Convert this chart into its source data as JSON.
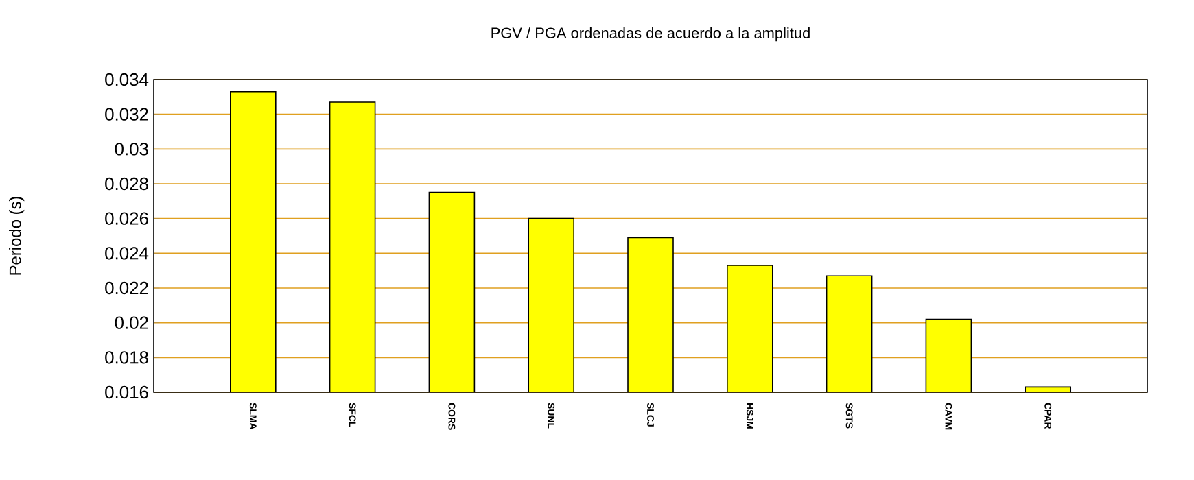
{
  "chart_data": {
    "type": "bar",
    "title": "PGV / PGA ordenadas de acuerdo a la amplitud",
    "ylabel": "Periodo (s)",
    "categories": [
      "SLMA",
      "SFCL",
      "CORS",
      "SUNL",
      "SLCJ",
      "HSJM",
      "SGTS",
      "CAVM",
      "CPAR"
    ],
    "values": [
      0.0333,
      0.0327,
      0.0275,
      0.026,
      0.0249,
      0.0233,
      0.0227,
      0.0202,
      0.0163
    ],
    "color": "#ffff00",
    "ylim": [
      0.016,
      0.034
    ],
    "yticks": [
      0.016,
      0.018,
      0.02,
      0.022,
      0.024,
      0.026,
      0.028,
      0.03,
      0.032,
      0.034
    ],
    "grid": "y"
  }
}
